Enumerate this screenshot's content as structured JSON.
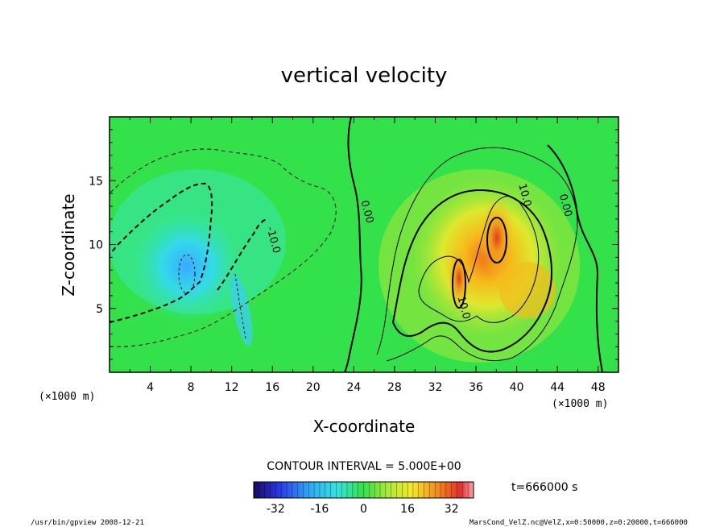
{
  "chart_data": {
    "type": "heatmap",
    "title": "vertical velocity",
    "xlabel": "X-coordinate",
    "ylabel": "Z-coordinate",
    "x_unit": "(×1000 m)",
    "x_unit_right": "(×1000 m)",
    "xlim": [
      0,
      50
    ],
    "ylim": [
      0,
      20
    ],
    "x_ticks": [
      "4",
      "8",
      "12",
      "16",
      "20",
      "24",
      "28",
      "32",
      "36",
      "40",
      "44",
      "48"
    ],
    "y_ticks": [
      "5",
      "10",
      "15"
    ],
    "contour_labels": [
      {
        "text": "0.00",
        "x": 25.0,
        "z": 12.5
      },
      {
        "text": "10.0",
        "x": 40.5,
        "z": 13.8
      },
      {
        "text": "0.00",
        "x": 44.5,
        "z": 13.0
      },
      {
        "text": "-10.0",
        "x": 15.8,
        "z": 10.3
      },
      {
        "text": "10.0",
        "x": 34.5,
        "z": 5.0
      }
    ],
    "contour_interval_text": "CONTOUR INTERVAL = 5.000E+00",
    "colorbar": {
      "range": [
        -40,
        40
      ],
      "tick_labels": [
        "-32",
        "-16",
        "0",
        "16",
        "32"
      ]
    },
    "time_text": "t=666000 s",
    "colors": {
      "background_field": "#33e24a",
      "min_color": "#1a0a5e",
      "max_color": "#f8a0a6"
    }
  },
  "footer": {
    "left": "/usr/bin/gpview   2008-12-21",
    "right": "MarsCond_VelZ.nc@VelZ,x=0:50000,z=0:20000,t=666000"
  }
}
